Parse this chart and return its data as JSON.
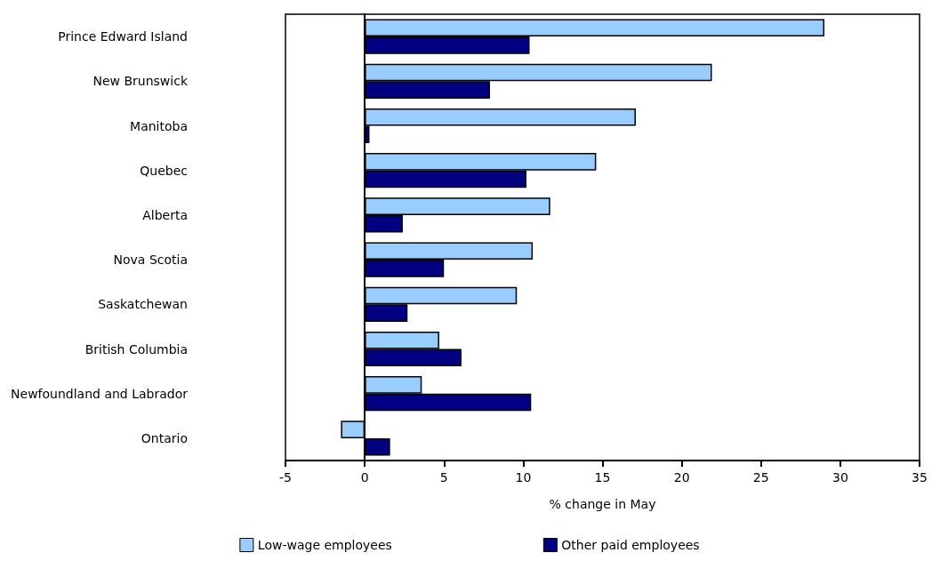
{
  "chart_data": {
    "type": "bar",
    "orientation": "horizontal",
    "xlabel": "% change in May",
    "categories": [
      "Prince Edward Island",
      "New Brunswick",
      "Manitoba",
      "Quebec",
      "Alberta",
      "Nova Scotia",
      "Saskatchewan",
      "British Columbia",
      "Newfoundland and Labrador",
      "Ontario"
    ],
    "series": [
      {
        "name": "Low-wage employees",
        "color": "#99ccff",
        "values": [
          29.0,
          21.9,
          17.1,
          14.6,
          11.7,
          10.6,
          9.6,
          4.7,
          3.6,
          -1.5
        ]
      },
      {
        "name": "Other paid employees",
        "color": "#000080",
        "values": [
          10.4,
          7.9,
          0.3,
          10.2,
          2.4,
          5.0,
          2.7,
          6.1,
          10.5,
          1.6
        ]
      }
    ],
    "xlim": [
      -5,
      35
    ],
    "xticks": [
      -5,
      0,
      5,
      10,
      15,
      20,
      25,
      30,
      35
    ],
    "legend": "bottom"
  }
}
